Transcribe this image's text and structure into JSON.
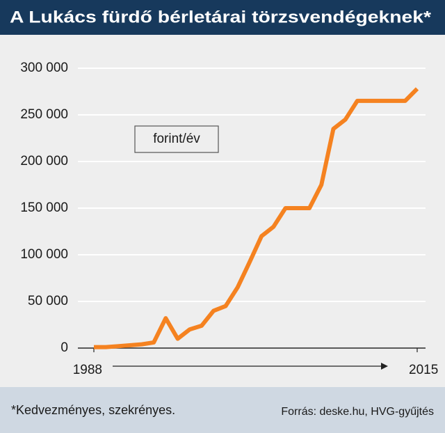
{
  "chart_data": {
    "type": "line",
    "title": "A Lukács fürdő bérletárai törzsvendégeknek*",
    "annotation": "forint/év",
    "footnote": "*Kedvezményes, szekrényes.",
    "source": "Forrás: deske.hu, HVG-gyűjtés",
    "x": [
      1988,
      1989,
      1990,
      1991,
      1992,
      1993,
      1994,
      1995,
      1996,
      1997,
      1998,
      1999,
      2000,
      2001,
      2002,
      2003,
      2004,
      2005,
      2006,
      2007,
      2008,
      2009,
      2010,
      2011,
      2012,
      2013,
      2014,
      2015
    ],
    "series": [
      {
        "color": "#f58220",
        "values": [
          1000,
          1000,
          2000,
          3000,
          4000,
          6000,
          32000,
          10000,
          20000,
          24000,
          40000,
          45000,
          65000,
          92000,
          120000,
          130000,
          150000,
          150000,
          150000,
          175000,
          235000,
          245000,
          265000,
          265000,
          265000,
          265000,
          265000,
          278000
        ]
      }
    ],
    "xlim": [
      1988,
      2015
    ],
    "xticks": [
      1988,
      2015
    ],
    "ylim": [
      0,
      300000
    ],
    "yticks": [
      0,
      {
        "value": 50000,
        "label": "50 000"
      },
      {
        "value": 100000,
        "label": "100 000"
      },
      {
        "value": 150000,
        "label": "150 000"
      },
      {
        "value": 200000,
        "label": "200 000"
      },
      {
        "value": 250000,
        "label": "250 000"
      },
      {
        "value": 300000,
        "label": "300 000"
      }
    ],
    "grid": true
  }
}
